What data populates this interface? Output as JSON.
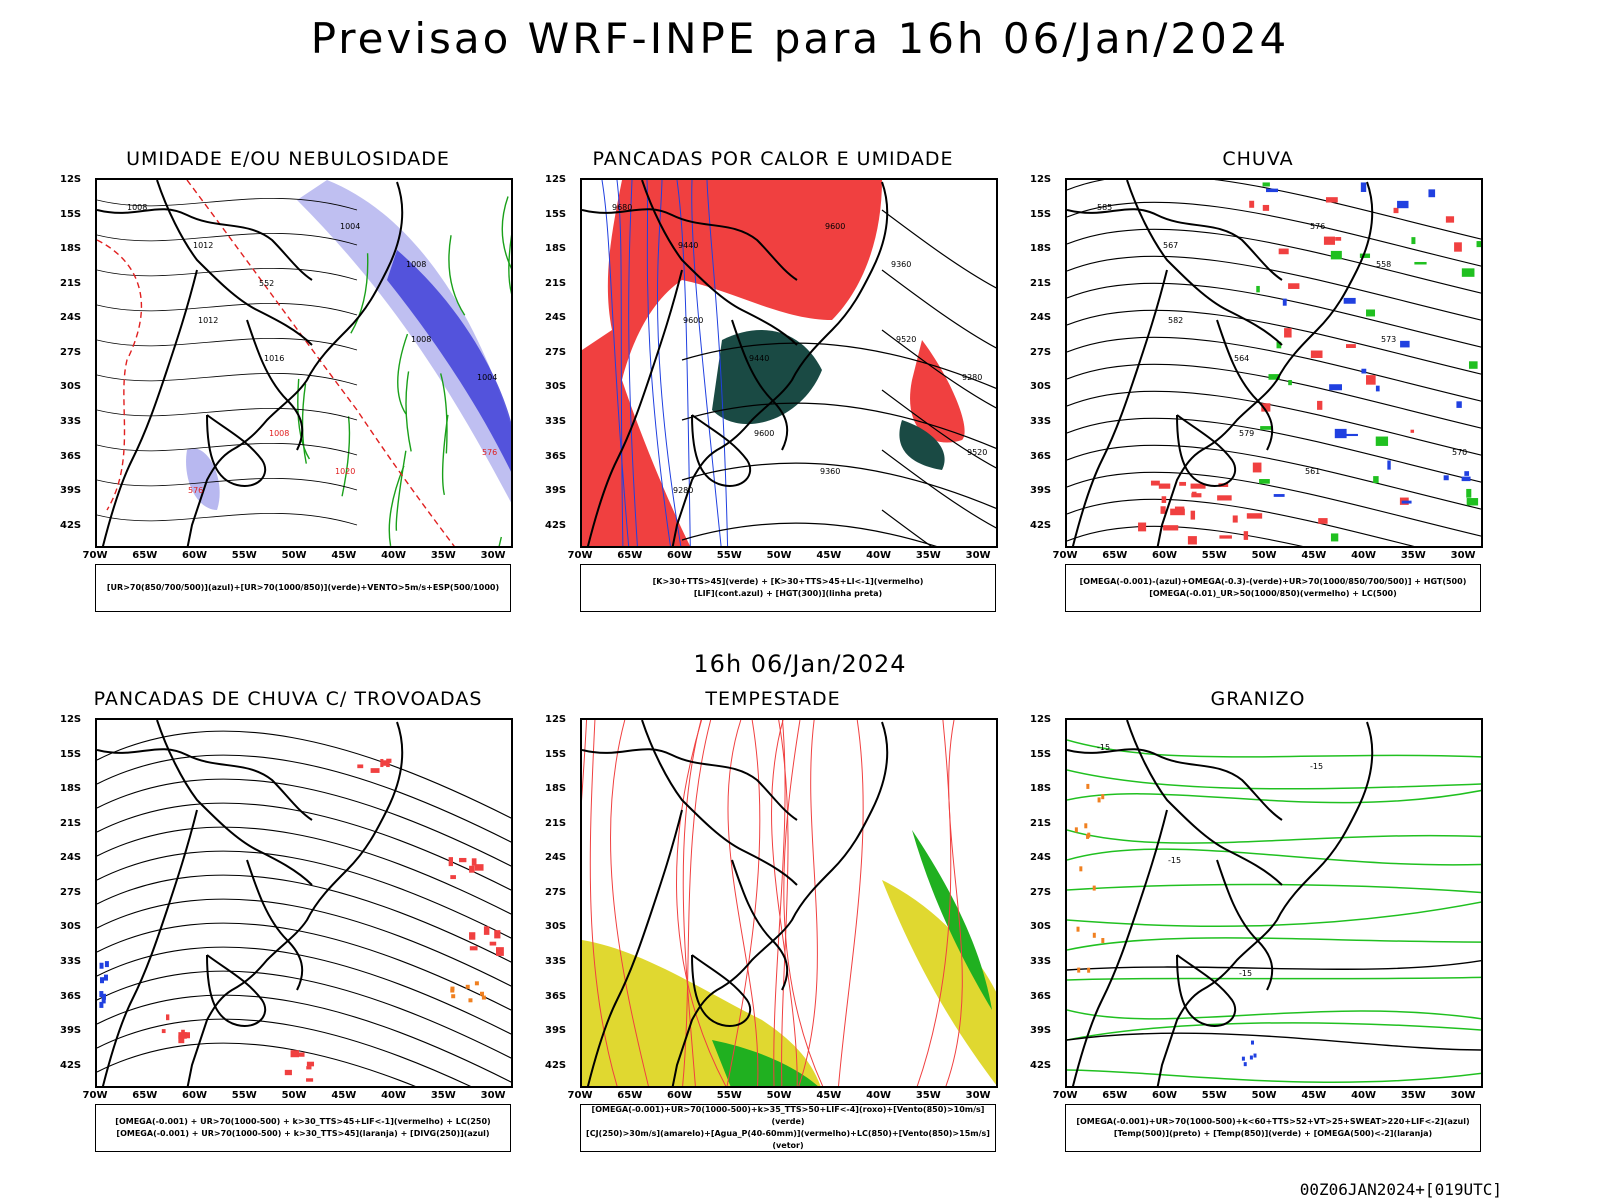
{
  "title": "Previsao WRF-INPE  para 16h 06/Jan/2024",
  "mid_title": "16h 06/Jan/2024",
  "stamp": "00Z06JAN2024+[019UTC]",
  "lat_labels": [
    "12S",
    "15S",
    "18S",
    "21S",
    "24S",
    "27S",
    "30S",
    "33S",
    "36S",
    "39S",
    "42S"
  ],
  "lon_labels": [
    "70W",
    "65W",
    "60W",
    "55W",
    "50W",
    "45W",
    "40W",
    "35W",
    "30W"
  ],
  "panels": [
    {
      "id": "umidade",
      "title": "UMIDADE E/OU NEBULOSIDADE",
      "legend": [
        "[UR>70(850/700/500)](azul)+[UR>70(1000/850)](verde)+VENTO>5m/s+ESP(500/1000)"
      ],
      "contour_labels": [
        "1008",
        "1012",
        "1008",
        "1004",
        "1008",
        "576",
        "1012",
        "1016",
        "1020",
        "1008",
        "1004",
        "576",
        "552"
      ],
      "colors": {
        "primary": "#1aa01a",
        "secondary": "#e02020",
        "fill1": "#b8b8f0",
        "fill2": "#4040d8"
      }
    },
    {
      "id": "pancadas_calor",
      "title": "PANCADAS POR CALOR E UMIDADE",
      "legend": [
        "[K>30+TTS>45](verde) + [K>30+TTS>45+LI<-1](vermelho)",
        "[LIF](cont.azul) + [HGT(300)](linha preta)"
      ],
      "contour_labels": [
        "9680",
        "9600",
        "9600",
        "9600",
        "9520",
        "9520",
        "9440",
        "9440",
        "9360",
        "9360",
        "9280",
        "9280"
      ],
      "colors": {
        "primary": "#f04040",
        "secondary": "#1a4a44",
        "line": "#2040e0"
      }
    },
    {
      "id": "chuva",
      "title": "CHUVA",
      "legend": [
        "[OMEGA(-0.001)-(azul)+OMEGA(-0.3)-(verde)+UR>70(1000/850/700/500)] + HGT(500)",
        "[OMEGA(-0.01)_UR>50(1000/850)(vermelho) + LC(500)"
      ],
      "contour_labels": [
        "585",
        "582",
        "579",
        "576",
        "573",
        "570",
        "567",
        "564",
        "561",
        "558"
      ],
      "colors": {
        "primary": "#f04040",
        "secondary": "#20c020",
        "tertiary": "#2040e0"
      }
    },
    {
      "id": "pancadas_trovoadas",
      "title": "PANCADAS DE CHUVA C/ TROVOADAS",
      "legend": [
        "[OMEGA(-0.001) + UR>70(1000-500) + k>30_TTS>45+LIF<-1](vermelho) + LC(250)",
        "[OMEGA(-0.001) + UR>70(1000-500) + k>30_TTS>45](laranja) + [DIVG(250)](azul)"
      ],
      "contour_labels": [],
      "colors": {
        "primary": "#f04040",
        "secondary": "#f08020",
        "tertiary": "#2040e0"
      }
    },
    {
      "id": "tempestade",
      "title": "TEMPESTADE",
      "legend": [
        "[OMEGA(-0.001)+UR>70(1000-500)+k>35_TTS>50+LIF<-4](roxo)+[Vento(850)>10m/s](verde)",
        "[CJ(250)>30m/s](amarelo)+[Agua_P(40-60mm)](vermelho)+LC(850)+[Vento(850)>15m/s](vetor)"
      ],
      "contour_labels": [],
      "colors": {
        "primary": "#f04040",
        "secondary": "#e0d830",
        "tertiary": "#20b020"
      }
    },
    {
      "id": "granizo",
      "title": "GRANIZO",
      "legend": [
        "[OMEGA(-0.001)+UR>70(1000-500)+k<60+TTS>52+VT>25+SWEAT>220+LIF<-2](azul)",
        "[Temp(500)](preto) + [Temp(850)](verde) + [OMEGA(500)<-2](laranja)"
      ],
      "contour_labels": [
        "-15",
        "-15",
        "-15",
        "-15"
      ],
      "colors": {
        "primary": "#20c020",
        "secondary": "#f08020",
        "tertiary": "#2040e0"
      }
    }
  ]
}
